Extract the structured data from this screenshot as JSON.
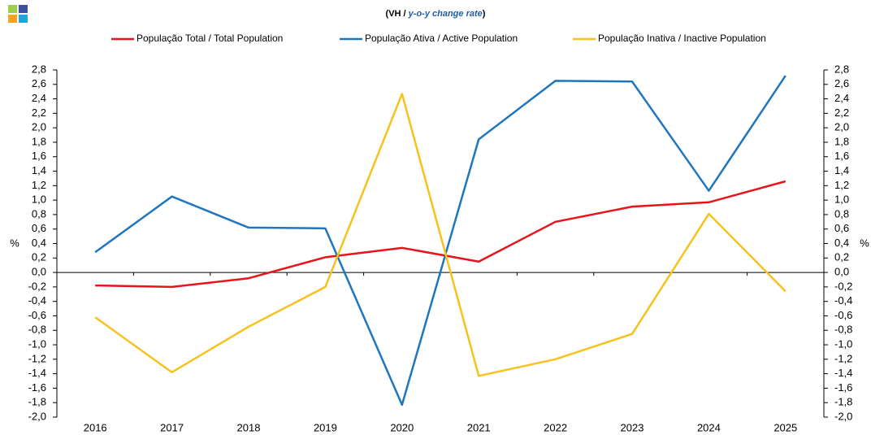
{
  "chart_data": {
    "type": "line",
    "subtitle": [
      "(VH / ",
      "y-o-y change rate",
      ")"
    ],
    "categories": [
      "2016",
      "2017",
      "2018",
      "2019",
      "2020",
      "2021",
      "2022",
      "2023",
      "2024",
      "2025"
    ],
    "series": [
      {
        "name": "População Total / Total Population",
        "color": "#e8141b",
        "values": [
          -0.18,
          -0.2,
          -0.08,
          0.21,
          0.34,
          0.15,
          0.7,
          0.91,
          0.97,
          1.26
        ]
      },
      {
        "name": "População Ativa / Active Population",
        "color": "#1f76bf",
        "values": [
          0.28,
          1.05,
          0.62,
          0.61,
          -1.83,
          1.84,
          2.65,
          2.64,
          1.13,
          2.72
        ]
      },
      {
        "name": "População Inativa / Inactive Population",
        "color": "#f7c21c",
        "values": [
          -0.62,
          -1.38,
          -0.75,
          -0.2,
          2.47,
          -1.43,
          -1.2,
          -0.85,
          0.81,
          -0.26
        ]
      }
    ],
    "ylabel": "%",
    "y2label": "%",
    "ylim": [
      -2.0,
      2.8
    ],
    "y2lim": [
      -2.0,
      2.8
    ],
    "yticks": [
      {
        "value": -2.0,
        "label": "-2,0"
      },
      {
        "value": -1.8,
        "label": "-1,8"
      },
      {
        "value": -1.6,
        "label": "-1,6"
      },
      {
        "value": -1.4,
        "label": "-1,4"
      },
      {
        "value": -1.2,
        "label": "-1,2"
      },
      {
        "value": -1.0,
        "label": "-1,0"
      },
      {
        "value": -0.8,
        "label": "-0,8"
      },
      {
        "value": -0.6,
        "label": "-0,6"
      },
      {
        "value": -0.4,
        "label": "-0,4"
      },
      {
        "value": -0.2,
        "label": "-0,2"
      },
      {
        "value": 0.0,
        "label": "0,0"
      },
      {
        "value": 0.2,
        "label": "0,2"
      },
      {
        "value": 0.4,
        "label": "0,4"
      },
      {
        "value": 0.6,
        "label": "0,6"
      },
      {
        "value": 0.8,
        "label": "0,8"
      },
      {
        "value": 1.0,
        "label": "1,0"
      },
      {
        "value": 1.2,
        "label": "1,2"
      },
      {
        "value": 1.4,
        "label": "1,4"
      },
      {
        "value": 1.6,
        "label": "1,6"
      },
      {
        "value": 1.8,
        "label": "1,8"
      },
      {
        "value": 2.0,
        "label": "2,0"
      },
      {
        "value": 2.2,
        "label": "2,2"
      },
      {
        "value": 2.4,
        "label": "2,4"
      },
      {
        "value": 2.6,
        "label": "2,6"
      },
      {
        "value": 2.8,
        "label": "2,8"
      }
    ],
    "y2ticks": [
      {
        "value": -2.0,
        "label": "-2,0"
      },
      {
        "value": -1.8,
        "label": "-1,8"
      },
      {
        "value": -1.6,
        "label": "-1,6"
      },
      {
        "value": -1.4,
        "label": "-1,4"
      },
      {
        "value": -1.2,
        "label": "-1,2"
      },
      {
        "value": -1.0,
        "label": "-1,0"
      },
      {
        "value": -0.8,
        "label": "-0,8"
      },
      {
        "value": -0.6,
        "label": "-0,6"
      },
      {
        "value": -0.4,
        "label": "-0,4"
      },
      {
        "value": -0.2,
        "label": "-0,2"
      },
      {
        "value": 0.0,
        "label": "0,0"
      },
      {
        "value": 0.2,
        "label": "0,2"
      },
      {
        "value": 0.4,
        "label": "0,4"
      },
      {
        "value": 0.6,
        "label": "0,6"
      },
      {
        "value": 0.8,
        "label": "0,8"
      },
      {
        "value": 1.0,
        "label": "1,0"
      },
      {
        "value": 1.2,
        "label": "1,2"
      },
      {
        "value": 1.4,
        "label": "1,4"
      },
      {
        "value": 1.6,
        "label": "1,6"
      },
      {
        "value": 1.8,
        "label": "1,8"
      },
      {
        "value": 2.0,
        "label": "2,0"
      },
      {
        "value": 2.2,
        "label": "2,2"
      },
      {
        "value": 2.4,
        "label": "2,4"
      },
      {
        "value": 2.6,
        "label": "2,6"
      },
      {
        "value": 2.8,
        "label": "2,8"
      }
    ],
    "grid": false,
    "legend": "top"
  }
}
